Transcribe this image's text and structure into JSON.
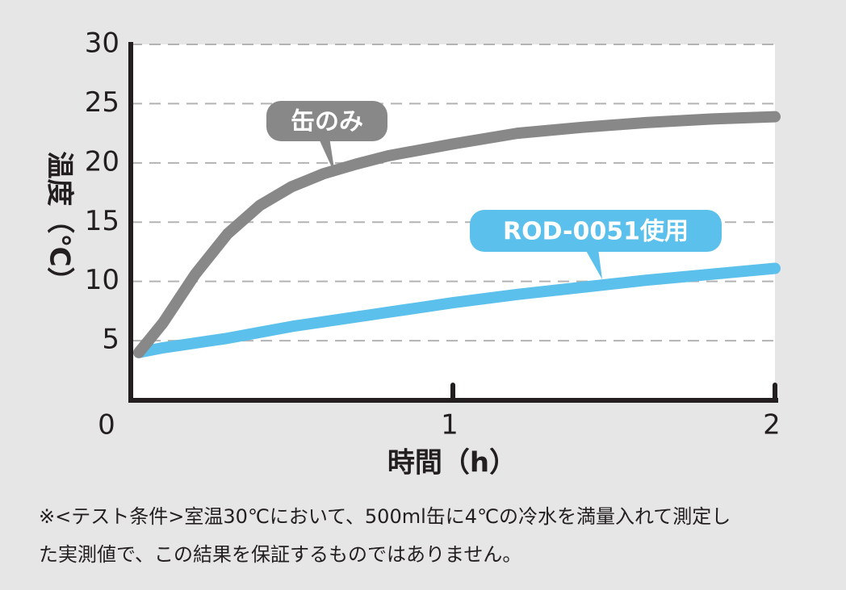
{
  "chart_data": {
    "type": "line",
    "x_label": "時間（h）",
    "y_label": "温度（℃）",
    "x": [
      0.025,
      0.1,
      0.2,
      0.3,
      0.4,
      0.5,
      0.6,
      0.7,
      0.8,
      1.0,
      1.2,
      1.4,
      1.6,
      1.8,
      2.0
    ],
    "series": [
      {
        "name": "缶のみ",
        "color": "#888888",
        "values": [
          4.0,
          6.5,
          10.6,
          14.0,
          16.4,
          18.0,
          19.1,
          19.9,
          20.6,
          21.6,
          22.5,
          23.0,
          23.4,
          23.7,
          23.9
        ]
      },
      {
        "name": "ROD-0051使用",
        "color": "#5bc0eb",
        "values": [
          4.0,
          4.4,
          4.8,
          5.2,
          5.7,
          6.2,
          6.6,
          7.0,
          7.4,
          8.2,
          8.9,
          9.5,
          10.1,
          10.6,
          11.1
        ]
      }
    ],
    "xlim": [
      0,
      2
    ],
    "xticks": [
      0,
      1,
      2
    ],
    "ylim": [
      0,
      30
    ],
    "yticks": [
      5,
      10,
      15,
      20,
      25,
      30
    ],
    "grid": true,
    "note": [
      "※<テスト条件>室温30℃において、500ml缶に4℃の冷水を満量入れて測定し",
      "た実測値で、この結果を保証するものではありません。"
    ]
  }
}
